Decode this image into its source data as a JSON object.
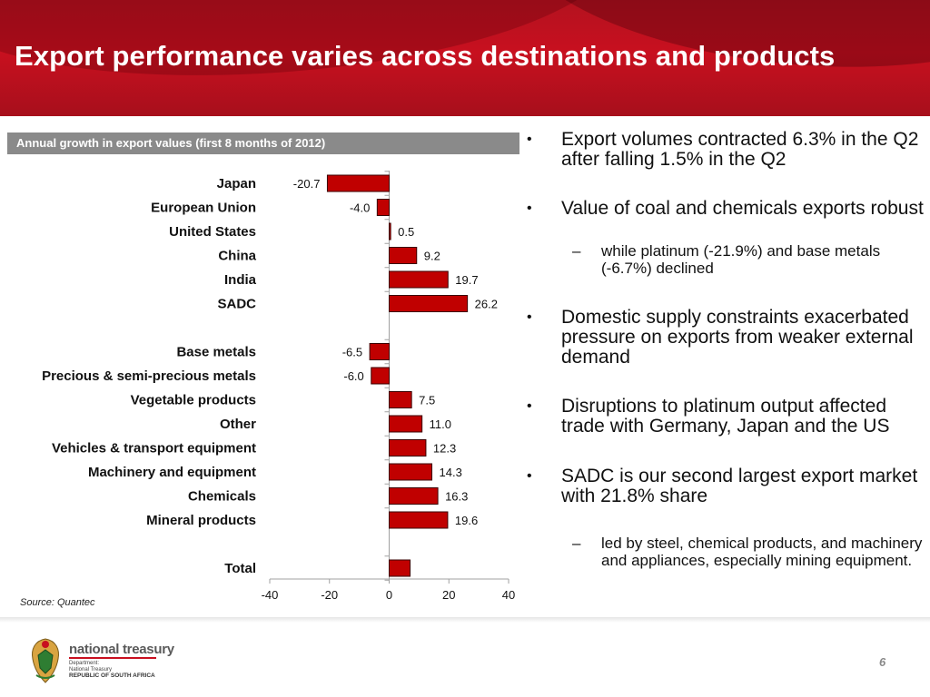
{
  "title": "Export performance varies across destinations and products",
  "chart_header": "Annual growth in export values (first 8 months of 2012)",
  "source": "Source: Quantec",
  "chart_data": {
    "type": "bar",
    "orientation": "horizontal",
    "title": "Annual growth in export values (first 8 months of 2012)",
    "xlim": [
      -40,
      40
    ],
    "xticks": [
      -40,
      -20,
      0,
      20,
      40
    ],
    "categories": [
      "Japan",
      "European Union",
      "United States",
      "China",
      "India",
      "SADC",
      "Base metals",
      "Precious & semi-precious metals",
      "Vegetable products",
      "Other",
      "Vehicles & transport equipment",
      "Machinery and equipment",
      "Chemicals",
      "Mineral products",
      "Total"
    ],
    "values": [
      -20.7,
      -4.0,
      0.5,
      9.2,
      19.7,
      26.2,
      -6.5,
      -6.0,
      7.5,
      11.0,
      12.3,
      14.3,
      16.3,
      19.6,
      7.0
    ],
    "data_labels": [
      "-20.7",
      "-4.0",
      "0.5",
      "9.2",
      "19.7",
      "26.2",
      "-6.5",
      "-6.0",
      "7.5",
      "11.0",
      "12.3",
      "14.3",
      "16.3",
      "19.6",
      ""
    ],
    "bar_color": "#c00000",
    "grid": false
  },
  "bullets": [
    {
      "level": 1,
      "text": "Export volumes contracted 6.3% in the Q2 after falling 1.5% in the Q2"
    },
    {
      "level": 1,
      "text": "Value of coal and chemicals exports robust"
    },
    {
      "level": 2,
      "text": "while platinum (-21.9%) and base metals (-6.7%) declined"
    },
    {
      "level": 1,
      "text": "Domestic supply constraints exacerbated pressure on exports from weaker external demand"
    },
    {
      "level": 1,
      "text": "Disruptions to platinum output affected trade with Germany, Japan and the US"
    },
    {
      "level": 1,
      "text": "SADC is our second largest export market with 21.8% share"
    },
    {
      "level": 2,
      "text": "led by steel, chemical products, and machinery and appliances, especially mining equipment."
    }
  ],
  "bullet_marker": "•",
  "sub_marker": "–",
  "footer": {
    "logo_name": "national treasury",
    "dept_line1": "Department:",
    "dept_line2": "National Treasury",
    "country": "REPUBLIC OF SOUTH AFRICA",
    "page_number": "6"
  },
  "colors": {
    "banner": "#c8101f",
    "bar": "#c00000",
    "header_bg": "#8a8a8a",
    "page_number": "#8a8a8a"
  }
}
